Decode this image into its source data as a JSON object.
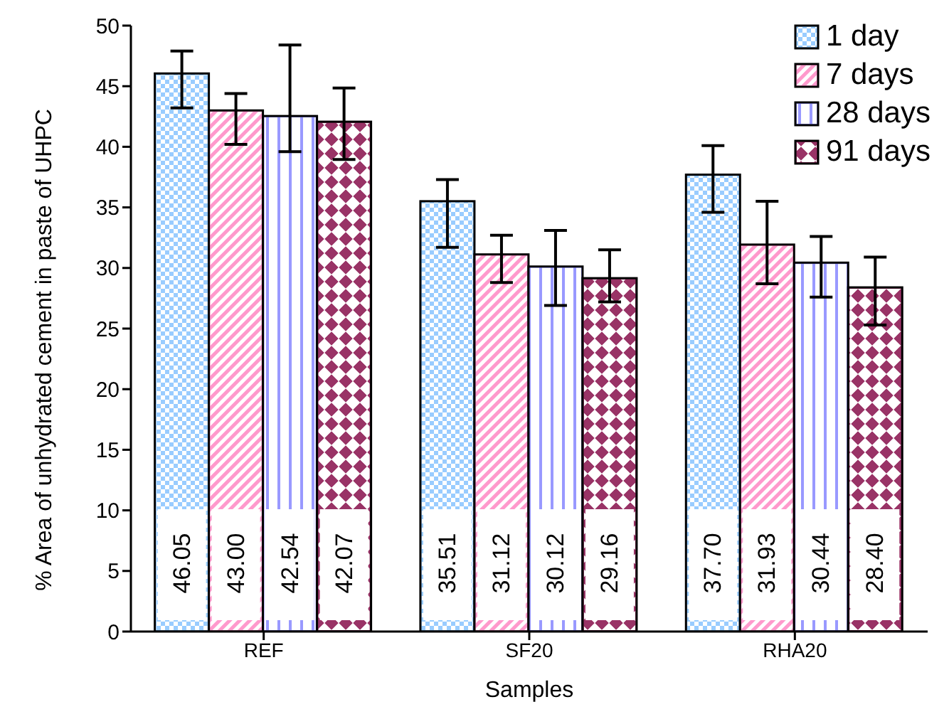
{
  "chart_data": {
    "type": "bar",
    "xlabel": "Samples",
    "ylabel": "% Area of unhydrated cement in paste of UHPC",
    "categories": [
      "REF",
      "SF20",
      "RHA20"
    ],
    "series": [
      {
        "name": "1 day",
        "color": "#99ccff",
        "values": [
          46.05,
          35.51,
          37.7
        ],
        "value_labels": [
          "46.05",
          "35.51",
          "37.70"
        ],
        "errors": [
          [
            43.2,
            47.9
          ],
          [
            31.7,
            37.3
          ],
          [
            34.6,
            40.1
          ]
        ]
      },
      {
        "name": "7 days",
        "color": "#ff99cc",
        "values": [
          43.0,
          31.12,
          31.93
        ],
        "value_labels": [
          "43.00",
          "31.12",
          "31.93"
        ],
        "errors": [
          [
            40.2,
            44.4
          ],
          [
            28.8,
            32.7
          ],
          [
            28.7,
            35.5
          ]
        ]
      },
      {
        "name": "28 days",
        "color": "#9999ff",
        "values": [
          42.54,
          30.12,
          30.44
        ],
        "value_labels": [
          "42.54",
          "30.12",
          "30.44"
        ],
        "errors": [
          [
            39.6,
            48.4
          ],
          [
            26.9,
            33.1
          ],
          [
            27.6,
            32.6
          ]
        ]
      },
      {
        "name": "91 days",
        "color": "#993366",
        "values": [
          42.07,
          29.16,
          28.4
        ],
        "value_labels": [
          "42.07",
          "29.16",
          "28.40"
        ],
        "errors": [
          [
            38.95,
            44.85
          ],
          [
            27.2,
            31.5
          ],
          [
            25.3,
            30.9
          ]
        ]
      }
    ],
    "ylim": [
      0,
      50
    ],
    "yticks": [
      0,
      5,
      10,
      15,
      20,
      25,
      30,
      35,
      40,
      45,
      50
    ],
    "legend": "top right",
    "grid": false
  }
}
